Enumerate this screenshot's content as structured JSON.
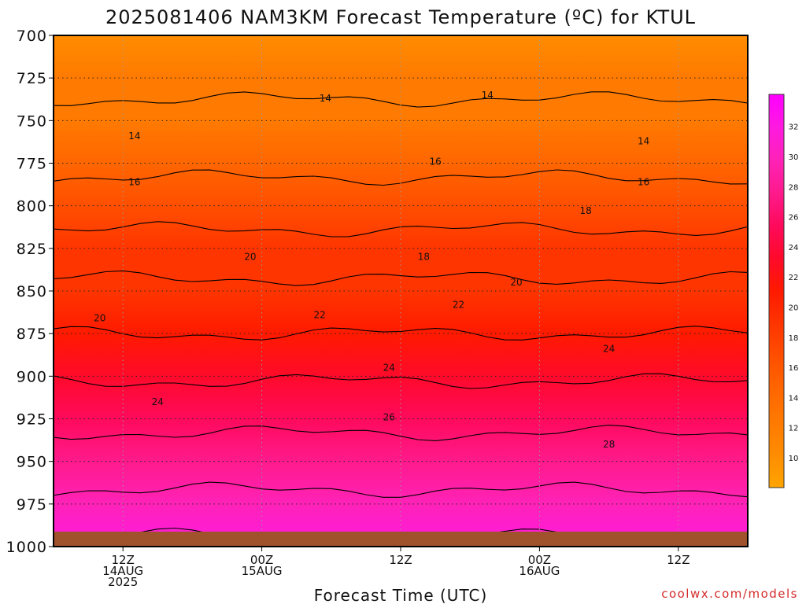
{
  "chart_data": {
    "type": "heatmap",
    "title": "2025081406 NAM3KM Forecast Temperature (ºC) for KTUL",
    "xlabel": "Forecast Time (UTC)",
    "ylabel": "",
    "y_ticks": [
      "700",
      "725",
      "750",
      "775",
      "800",
      "825",
      "850",
      "875",
      "900",
      "925",
      "950",
      "975",
      "1000"
    ],
    "y_range": [
      700,
      1000
    ],
    "x_ticks": [
      {
        "lines": [
          "12Z",
          "14AUG",
          "2025"
        ],
        "hours": 6
      },
      {
        "lines": [
          "00Z",
          "15AUG"
        ],
        "hours": 18
      },
      {
        "lines": [
          "12Z"
        ],
        "hours": 30
      },
      {
        "lines": [
          "00Z",
          "16AUG"
        ],
        "hours": 42
      },
      {
        "lines": [
          "12Z"
        ],
        "hours": 54
      }
    ],
    "x_range_hours": [
      0,
      60
    ],
    "grid": true,
    "colorbar": {
      "labels": [
        "10",
        "12",
        "14",
        "16",
        "18",
        "20",
        "22",
        "24",
        "26",
        "28",
        "30",
        "32"
      ],
      "colors": [
        "#ffa500",
        "#ff8c00",
        "#ff7a00",
        "#ff6600",
        "#ff4f00",
        "#ff3500",
        "#ff1a00",
        "#ff0a2a",
        "#ff0a5c",
        "#ff1a8c",
        "#ff22b8",
        "#ff1ae0",
        "#ff00ff"
      ]
    },
    "profile": [
      {
        "p": 700,
        "t": 12.5
      },
      {
        "p": 725,
        "t": 13.5
      },
      {
        "p": 750,
        "t": 14.5
      },
      {
        "p": 775,
        "t": 15.5
      },
      {
        "p": 800,
        "t": 17.0
      },
      {
        "p": 825,
        "t": 18.8
      },
      {
        "p": 850,
        "t": 20.5
      },
      {
        "p": 875,
        "t": 22.0
      },
      {
        "p": 900,
        "t": 23.8
      },
      {
        "p": 925,
        "t": 25.5
      },
      {
        "p": 950,
        "t": 27.0
      },
      {
        "p": 975,
        "t": 28.5
      },
      {
        "p": 1000,
        "t": 30.5
      }
    ],
    "contour_labels": [
      {
        "text": "14",
        "hours": 23.5,
        "p": 737
      },
      {
        "text": "14",
        "hours": 37.5,
        "p": 735
      },
      {
        "text": "14",
        "hours": 7,
        "p": 759
      },
      {
        "text": "14",
        "hours": 51,
        "p": 762
      },
      {
        "text": "16",
        "hours": 33,
        "p": 774
      },
      {
        "text": "16",
        "hours": 7,
        "p": 786
      },
      {
        "text": "16",
        "hours": 51,
        "p": 786
      },
      {
        "text": "18",
        "hours": 46,
        "p": 803
      },
      {
        "text": "18",
        "hours": 32,
        "p": 830
      },
      {
        "text": "20",
        "hours": 17,
        "p": 830
      },
      {
        "text": "20",
        "hours": 40,
        "p": 845
      },
      {
        "text": "20",
        "hours": 4,
        "p": 866
      },
      {
        "text": "22",
        "hours": 23,
        "p": 864
      },
      {
        "text": "22",
        "hours": 35,
        "p": 858
      },
      {
        "text": "24",
        "hours": 29,
        "p": 895
      },
      {
        "text": "24",
        "hours": 48,
        "p": 884
      },
      {
        "text": "24",
        "hours": 9,
        "p": 915
      },
      {
        "text": "26",
        "hours": 29,
        "p": 924
      },
      {
        "text": "28",
        "hours": 48,
        "p": 940
      }
    ]
  },
  "credit": "coolwx.com/models"
}
